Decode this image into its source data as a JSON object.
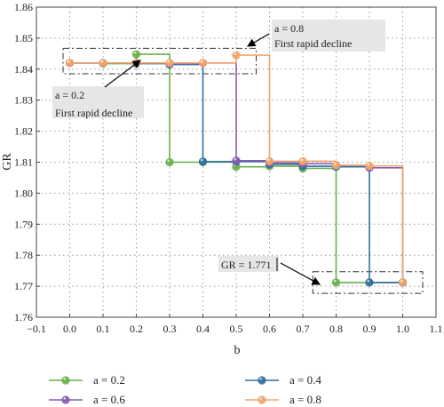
{
  "chart_data": {
    "type": "line",
    "xlabel": "b",
    "ylabel": "GR",
    "xlim": [
      -0.1,
      1.1
    ],
    "ylim": [
      1.76,
      1.86
    ],
    "xticks": [
      "−0.1",
      "0.0",
      "0.1",
      "0.2",
      "0.3",
      "0.4",
      "0.5",
      "0.6",
      "0.7",
      "0.8",
      "0.9",
      "1.0",
      "1.1"
    ],
    "xtick_values": [
      -0.1,
      0.0,
      0.1,
      0.2,
      0.3,
      0.4,
      0.5,
      0.6,
      0.7,
      0.8,
      0.9,
      1.0,
      1.1
    ],
    "yticks": [
      "1.76",
      "1.77",
      "1.78",
      "1.79",
      "1.80",
      "1.81",
      "1.82",
      "1.83",
      "1.84",
      "1.85",
      "1.86"
    ],
    "ytick_values": [
      1.76,
      1.77,
      1.78,
      1.79,
      1.8,
      1.81,
      1.82,
      1.83,
      1.84,
      1.85,
      1.86
    ],
    "grid": true,
    "legend_position": "bottom",
    "line_style": "step",
    "x": [
      0.0,
      0.1,
      0.2,
      0.3,
      0.4,
      0.5,
      0.6,
      0.7,
      0.8,
      0.9,
      1.0
    ],
    "series": [
      {
        "name": "a = 0.2",
        "color": "#6ab04c",
        "values": [
          1.842,
          1.8418,
          1.8448,
          1.81,
          1.81,
          1.8085,
          1.8087,
          1.808,
          1.7712,
          1.7712,
          1.7712
        ]
      },
      {
        "name": "a = 0.4",
        "color": "#2f6f9f",
        "values": [
          1.842,
          1.842,
          1.8418,
          1.8415,
          1.8102,
          1.8102,
          1.8093,
          1.8087,
          1.8085,
          1.7712,
          1.7712
        ]
      },
      {
        "name": "a = 0.6",
        "color": "#8a5ab5",
        "values": [
          1.842,
          1.842,
          1.842,
          1.8418,
          1.842,
          1.8105,
          1.8098,
          1.8095,
          1.809,
          1.8082,
          1.7712
        ]
      },
      {
        "name": "a = 0.8",
        "color": "#f0a56a",
        "values": [
          1.842,
          1.842,
          1.842,
          1.842,
          1.842,
          1.8445,
          1.8103,
          1.8103,
          1.809,
          1.8088,
          1.7712
        ]
      }
    ],
    "annotations": [
      {
        "id": "a08",
        "lines": [
          "a = 0.8",
          "First rapid decline"
        ]
      },
      {
        "id": "a02",
        "lines": [
          "a = 0.2",
          "First rapid decline"
        ]
      },
      {
        "id": "gr",
        "lines": [
          "GR = 1.771"
        ]
      }
    ]
  }
}
